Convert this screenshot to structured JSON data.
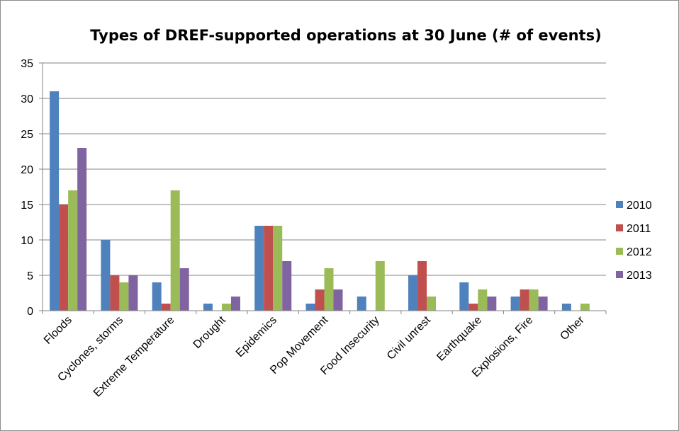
{
  "chart_data": {
    "type": "bar",
    "title": "Types of DREF-supported operations at 30 June (# of events)",
    "xlabel": "",
    "ylabel": "",
    "ylim": [
      0,
      35
    ],
    "yticks": [
      0,
      5,
      10,
      15,
      20,
      25,
      30,
      35
    ],
    "grid": true,
    "legend_position": "right",
    "categories": [
      "Floods",
      "Cyclones, storms",
      "Extreme Temperature",
      "Drought",
      "Epidemics",
      "Pop Movement",
      "Food Insecurity",
      "Civil unrest",
      "Earthquake",
      "Explosions, Fire",
      "Other"
    ],
    "series": [
      {
        "name": "2010",
        "color": "#4f81bd",
        "values": [
          31,
          10,
          4,
          1,
          12,
          1,
          2,
          5,
          4,
          2,
          1
        ]
      },
      {
        "name": "2011",
        "color": "#c0504d",
        "values": [
          15,
          5,
          1,
          0,
          12,
          3,
          0,
          7,
          1,
          3,
          0
        ]
      },
      {
        "name": "2012",
        "color": "#9bbb59",
        "values": [
          17,
          4,
          17,
          1,
          12,
          6,
          7,
          2,
          3,
          3,
          1
        ]
      },
      {
        "name": "2013",
        "color": "#8064a2",
        "values": [
          23,
          5,
          6,
          2,
          7,
          3,
          0,
          0,
          2,
          2,
          0
        ]
      }
    ]
  }
}
